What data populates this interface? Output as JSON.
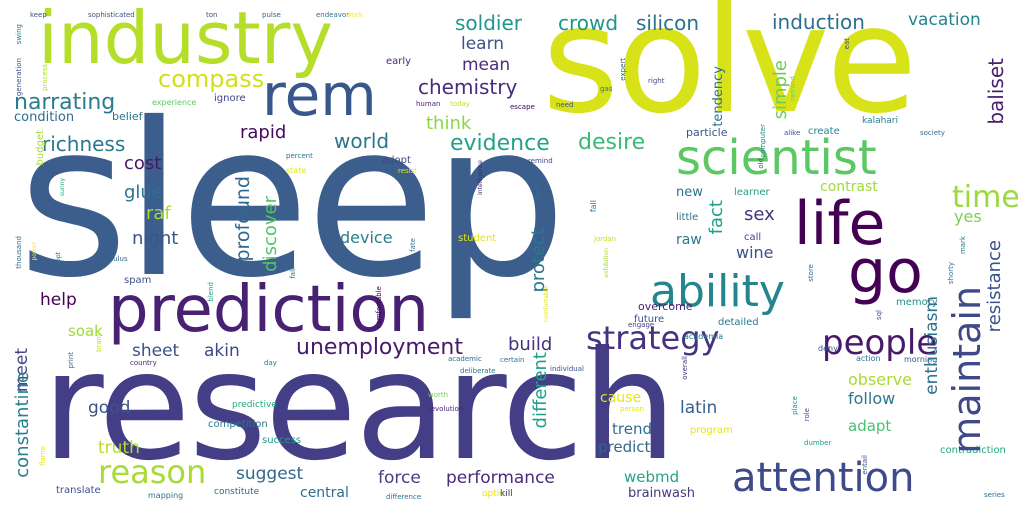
{
  "words": [
    {
      "text": "sleep",
      "color": "#3b5e8c"
    },
    {
      "text": "research",
      "color": "#433e85"
    },
    {
      "text": "solve",
      "color": "#d7e219"
    },
    {
      "text": "industry",
      "color": "#b5de2b"
    },
    {
      "text": "prediction",
      "color": "#482173"
    },
    {
      "text": "scientist",
      "color": "#5cc863"
    },
    {
      "text": "life",
      "color": "#440154"
    },
    {
      "text": "rem",
      "color": "#38588c"
    },
    {
      "text": "go",
      "color": "#440154"
    },
    {
      "text": "ability",
      "color": "#25858e"
    },
    {
      "text": "maintain",
      "color": "#3f4889"
    },
    {
      "text": "attention",
      "color": "#3e4a89"
    },
    {
      "text": "strategy",
      "color": "#46337f"
    },
    {
      "text": "people",
      "color": "#48186a"
    },
    {
      "text": "reason",
      "color": "#a8db34"
    },
    {
      "text": "time",
      "color": "#9bd93c"
    },
    {
      "text": "unemployment",
      "color": "#48186a"
    },
    {
      "text": "compass",
      "color": "#d0e11c"
    },
    {
      "text": "chemistry",
      "color": "#472c7a"
    },
    {
      "text": "evidence",
      "color": "#20a386"
    },
    {
      "text": "desire",
      "color": "#3aba76"
    },
    {
      "text": "world",
      "color": "#2a768e"
    },
    {
      "text": "narrating",
      "color": "#297b8e"
    },
    {
      "text": "richness",
      "color": "#2a788e"
    },
    {
      "text": "soldier",
      "color": "#1f988b"
    },
    {
      "text": "crowd",
      "color": "#1f968b"
    },
    {
      "text": "silicon",
      "color": "#2c728e"
    },
    {
      "text": "induction",
      "color": "#2d708e"
    },
    {
      "text": "vacation",
      "color": "#25838e"
    },
    {
      "text": "learn",
      "color": "#3b528b"
    },
    {
      "text": "mean",
      "color": "#472d7b"
    },
    {
      "text": "think",
      "color": "#8bd646"
    },
    {
      "text": "rapid",
      "color": "#46085c"
    },
    {
      "text": "cost",
      "color": "#481668"
    },
    {
      "text": "glue",
      "color": "#2d708e"
    },
    {
      "text": "profound",
      "color": "#31688e"
    },
    {
      "text": "raf",
      "color": "#a8db34"
    },
    {
      "text": "night",
      "color": "#39558c"
    },
    {
      "text": "discover",
      "color": "#52c569"
    },
    {
      "text": "device",
      "color": "#27808e"
    },
    {
      "text": "sex",
      "color": "#46337f"
    },
    {
      "text": "yes",
      "color": "#7ad151"
    },
    {
      "text": "fact",
      "color": "#1fa088"
    },
    {
      "text": "wine",
      "color": "#3b528b"
    },
    {
      "text": "raw",
      "color": "#2a768e"
    },
    {
      "text": "new",
      "color": "#2c728e"
    },
    {
      "text": "contrast",
      "color": "#a0da39"
    },
    {
      "text": "simple",
      "color": "#6ccd5a"
    },
    {
      "text": "tendency",
      "color": "#2d708e"
    },
    {
      "text": "baliset",
      "color": "#481f70"
    },
    {
      "text": "resistance",
      "color": "#3a538b"
    },
    {
      "text": "enthusiasm",
      "color": "#2c728e"
    },
    {
      "text": "observe",
      "color": "#a8db34"
    },
    {
      "text": "follow",
      "color": "#2a788e"
    },
    {
      "text": "adapt",
      "color": "#4ac16d"
    },
    {
      "text": "latin",
      "color": "#355f8d"
    },
    {
      "text": "trend",
      "color": "#2e6f8e"
    },
    {
      "text": "predict",
      "color": "#31688e"
    },
    {
      "text": "cause",
      "color": "#e5e419"
    },
    {
      "text": "build",
      "color": "#46327e"
    },
    {
      "text": "protect",
      "color": "#2a788e"
    },
    {
      "text": "different",
      "color": "#1f9e89"
    },
    {
      "text": "force",
      "color": "#423f85"
    },
    {
      "text": "performance",
      "color": "#472a7a"
    },
    {
      "text": "webmd",
      "color": "#21a585"
    },
    {
      "text": "brainwash",
      "color": "#443983"
    },
    {
      "text": "central",
      "color": "#2f6c8e"
    },
    {
      "text": "suggest",
      "color": "#31688e"
    },
    {
      "text": "truth",
      "color": "#b5de2b"
    },
    {
      "text": "good",
      "color": "#3b528b"
    },
    {
      "text": "sheet",
      "color": "#3b528b"
    },
    {
      "text": "akin",
      "color": "#404688"
    },
    {
      "text": "help",
      "color": "#440154"
    },
    {
      "text": "meet",
      "color": "#414487"
    },
    {
      "text": "soak",
      "color": "#a0da39"
    },
    {
      "text": "constantine",
      "color": "#27808e"
    },
    {
      "text": "condition",
      "color": "#2e6e8e"
    },
    {
      "text": "belief",
      "color": "#2c728e"
    },
    {
      "text": "experience",
      "color": "#5ec962"
    },
    {
      "text": "ignore",
      "color": "#404688"
    },
    {
      "text": "early",
      "color": "#482878"
    },
    {
      "text": "human",
      "color": "#481f70"
    },
    {
      "text": "today",
      "color": "#bddf26"
    },
    {
      "text": "escape",
      "color": "#440154"
    },
    {
      "text": "need",
      "color": "#3b528b"
    },
    {
      "text": "gas",
      "color": "#2d708e"
    },
    {
      "text": "right",
      "color": "#3e4989"
    },
    {
      "text": "engage",
      "color": "#433e85"
    },
    {
      "text": "particle",
      "color": "#38588c"
    },
    {
      "text": "create",
      "color": "#23898e"
    },
    {
      "text": "alike",
      "color": "#3e4989"
    },
    {
      "text": "computer",
      "color": "#25838e"
    },
    {
      "text": "kalahari",
      "color": "#27808e"
    },
    {
      "text": "society",
      "color": "#31688e"
    },
    {
      "text": "learner",
      "color": "#1f9e89"
    },
    {
      "text": "little",
      "color": "#2c728e"
    },
    {
      "text": "call",
      "color": "#404688"
    },
    {
      "text": "student",
      "color": "#e5e419"
    },
    {
      "text": "jordan",
      "color": "#bddf26"
    },
    {
      "text": "memory",
      "color": "#21918c"
    },
    {
      "text": "detailed",
      "color": "#2a788e"
    },
    {
      "text": "future",
      "color": "#3b528b"
    },
    {
      "text": "overcome",
      "color": "#481f70"
    },
    {
      "text": "academia",
      "color": "#2a788e"
    },
    {
      "text": "deny",
      "color": "#39558c"
    },
    {
      "text": "action",
      "color": "#2c728e"
    },
    {
      "text": "morning",
      "color": "#3b528b"
    },
    {
      "text": "entail",
      "color": "#6ccd5a"
    },
    {
      "text": "contradiction",
      "color": "#38588c"
    },
    {
      "text": "person",
      "color": "#22a884"
    },
    {
      "text": "program",
      "color": "#e5e419"
    },
    {
      "text": "dumber",
      "color": "#e5e419"
    },
    {
      "text": "series",
      "color": "#1f9e89"
    },
    {
      "text": "role",
      "color": "#31688e"
    },
    {
      "text": "place",
      "color": "#3e4989"
    },
    {
      "text": "close",
      "color": "#23898e"
    },
    {
      "text": "overall",
      "color": "#472d7b"
    },
    {
      "text": "exercise",
      "color": "#3b528b"
    },
    {
      "text": "individual",
      "color": "#2c728e"
    },
    {
      "text": "certain",
      "color": "#31688e"
    },
    {
      "text": "academic",
      "color": "#2a788e"
    },
    {
      "text": "deliberate",
      "color": "#2c728e"
    },
    {
      "text": "day",
      "color": "#22a884"
    },
    {
      "text": "predictive",
      "color": "#2a788e"
    },
    {
      "text": "competition",
      "color": "#1f9e89"
    },
    {
      "text": "success",
      "color": "#7ad151"
    },
    {
      "text": "worth",
      "color": "#482878"
    },
    {
      "text": "revolution",
      "color": "#3e4989"
    },
    {
      "text": "kill",
      "color": "#e5e419"
    },
    {
      "text": "option",
      "color": "#2d708e"
    },
    {
      "text": "difference",
      "color": "#31688e"
    },
    {
      "text": "enhasal",
      "color": "#2c728e"
    },
    {
      "text": "constitute",
      "color": "#3b528b"
    },
    {
      "text": "mapping",
      "color": "#e5e419"
    },
    {
      "text": "translate",
      "color": "#482878"
    },
    {
      "text": "country",
      "color": "#bddf26"
    },
    {
      "text": "flame",
      "color": "#31688e"
    },
    {
      "text": "brain",
      "color": "#3b528b"
    },
    {
      "text": "print",
      "color": "#31688e"
    },
    {
      "text": "perfection",
      "color": "#2c728e"
    },
    {
      "text": "spam",
      "color": "#fde725"
    },
    {
      "text": "stimulus",
      "color": "#22a884"
    },
    {
      "text": "power",
      "color": "#2c728e"
    },
    {
      "text": "sunny",
      "color": "#e5e419"
    },
    {
      "text": "percent",
      "color": "#3e4989"
    },
    {
      "text": "state",
      "color": "#e5e419"
    },
    {
      "text": "adopt",
      "color": "#482878"
    },
    {
      "text": "resist",
      "color": "#2a788e"
    },
    {
      "text": "intelligence",
      "color": "#a8db34"
    },
    {
      "text": "know",
      "color": "#2c728e"
    },
    {
      "text": "budget",
      "color": "#3b528b"
    },
    {
      "text": "thousand",
      "color": "#3b528b"
    },
    {
      "text": "fly",
      "color": "#3e4989"
    },
    {
      "text": "beginner",
      "color": "#31688e"
    },
    {
      "text": "keep",
      "color": "#2c728e"
    },
    {
      "text": "sophisticated",
      "color": "#fde725"
    },
    {
      "text": "ton",
      "color": "#2a788e"
    },
    {
      "text": "pulse",
      "color": "#3b528b"
    },
    {
      "text": "endeavor",
      "color": "#a8db34"
    },
    {
      "text": "work",
      "color": "#31688e"
    },
    {
      "text": "swing",
      "color": "#3b528b"
    },
    {
      "text": "generation",
      "color": "#7ad151"
    },
    {
      "text": "process",
      "color": "#1f9e89"
    },
    {
      "text": "expert",
      "color": "#2c728e"
    },
    {
      "text": "eat",
      "color": "#440154"
    },
    {
      "text": "remind",
      "color": "#3e4989"
    },
    {
      "text": "blend",
      "color": "#2c728e"
    },
    {
      "text": "fall",
      "color": "#2a788e"
    },
    {
      "text": "comfortable",
      "color": "#e5e419"
    },
    {
      "text": "exhibition",
      "color": "#a8db34"
    },
    {
      "text": "carl",
      "color": "#2c728e"
    },
    {
      "text": "tech",
      "color": "#31688e"
    },
    {
      "text": "fate",
      "color": "#2c728e"
    },
    {
      "text": "store",
      "color": "#2c728e"
    },
    {
      "text": "shorty",
      "color": "#3e4989"
    },
    {
      "text": "mark",
      "color": "#3b528b"
    },
    {
      "text": "sql",
      "color": "#482878"
    },
    {
      "text": "old",
      "color": "#3e4989"
    }
  ]
}
